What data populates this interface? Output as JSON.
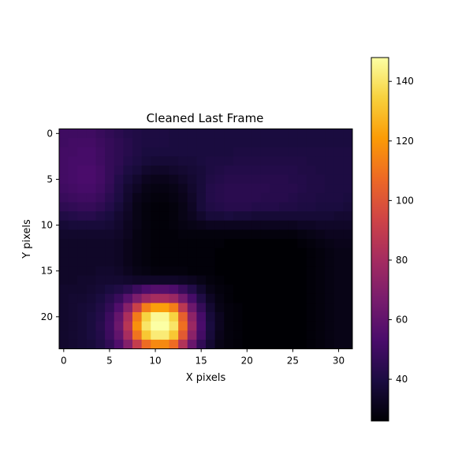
{
  "chart_data": {
    "type": "heatmap",
    "title": "Cleaned Last Frame",
    "xlabel": "X pixels",
    "ylabel": "Y pixels",
    "grid": false,
    "xlim": [
      -0.5,
      31.5
    ],
    "ylim": [
      23.5,
      -0.5
    ],
    "x_ticks": [
      0,
      5,
      10,
      15,
      20,
      25,
      30
    ],
    "y_ticks": [
      0,
      5,
      10,
      15,
      20
    ],
    "colormap": "inferno",
    "colorbar": {
      "placement": "right",
      "range": [
        26,
        148
      ],
      "ticks": [
        40,
        60,
        80,
        100,
        120,
        140
      ]
    },
    "grid_size": {
      "cols": 32,
      "rows": 24
    },
    "colormap_stops": [
      "#000004",
      "#1b0c41",
      "#4a0c6b",
      "#781c6d",
      "#a52c60",
      "#cf4446",
      "#ed6925",
      "#fb9b06",
      "#f7d13d",
      "#fcffa4"
    ],
    "z": [
      [
        50,
        50,
        50,
        50,
        48,
        46,
        44,
        42,
        41,
        40,
        40,
        40,
        39,
        39,
        39,
        39,
        39,
        39,
        39,
        39,
        39,
        39,
        39,
        39,
        39,
        39,
        39,
        39,
        39,
        39,
        39,
        39
      ],
      [
        50,
        51,
        51,
        51,
        49,
        47,
        45,
        43,
        41,
        40,
        40,
        40,
        39,
        39,
        39,
        39,
        39,
        39,
        39,
        39,
        39,
        39,
        39,
        39,
        39,
        39,
        39,
        39,
        39,
        39,
        39,
        39
      ],
      [
        51,
        51,
        52,
        52,
        50,
        47,
        45,
        43,
        41,
        39,
        39,
        39,
        39,
        39,
        39,
        39,
        39,
        39,
        39,
        40,
        40,
        40,
        40,
        40,
        40,
        40,
        40,
        40,
        40,
        40,
        40,
        40
      ],
      [
        51,
        52,
        52,
        52,
        50,
        47,
        45,
        42,
        40,
        38,
        37,
        37,
        37,
        38,
        38,
        39,
        40,
        40,
        40,
        41,
        41,
        41,
        41,
        41,
        41,
        41,
        41,
        40,
        40,
        40,
        40,
        40
      ],
      [
        51,
        52,
        53,
        53,
        51,
        47,
        44,
        40,
        38,
        35,
        34,
        34,
        35,
        36,
        37,
        38,
        40,
        41,
        42,
        42,
        42,
        42,
        42,
        42,
        42,
        42,
        41,
        41,
        40,
        40,
        40,
        40
      ],
      [
        51,
        52,
        53,
        53,
        51,
        47,
        42,
        38,
        35,
        32,
        31,
        31,
        32,
        34,
        36,
        38,
        41,
        42,
        43,
        43,
        43,
        43,
        43,
        43,
        43,
        42,
        42,
        41,
        41,
        40,
        40,
        40
      ],
      [
        50,
        51,
        52,
        52,
        50,
        46,
        41,
        36,
        33,
        30,
        29,
        29,
        30,
        32,
        35,
        38,
        42,
        43,
        44,
        44,
        44,
        44,
        44,
        43,
        43,
        43,
        42,
        41,
        41,
        40,
        40,
        40
      ],
      [
        48,
        49,
        50,
        50,
        48,
        44,
        40,
        35,
        31,
        29,
        28,
        28,
        29,
        31,
        34,
        38,
        42,
        43,
        44,
        44,
        44,
        44,
        43,
        43,
        43,
        42,
        41,
        41,
        40,
        40,
        40,
        39
      ],
      [
        45,
        46,
        47,
        47,
        45,
        42,
        38,
        34,
        30,
        28,
        27,
        27,
        28,
        30,
        33,
        38,
        41,
        42,
        43,
        43,
        43,
        42,
        42,
        42,
        41,
        41,
        40,
        40,
        39,
        39,
        39,
        38
      ],
      [
        41,
        42,
        43,
        43,
        41,
        39,
        36,
        33,
        30,
        28,
        27,
        27,
        28,
        30,
        32,
        35,
        38,
        38,
        39,
        38,
        38,
        37,
        37,
        37,
        37,
        37,
        37,
        37,
        37,
        37,
        36,
        36
      ],
      [
        37,
        38,
        38,
        38,
        38,
        37,
        35,
        32,
        30,
        28,
        27,
        27,
        28,
        29,
        30,
        31,
        32,
        32,
        32,
        32,
        32,
        32,
        32,
        32,
        32,
        32,
        33,
        33,
        34,
        34,
        34,
        34
      ],
      [
        35,
        35,
        35,
        35,
        35,
        35,
        34,
        32,
        29,
        28,
        27,
        27,
        27,
        28,
        28,
        28,
        28,
        28,
        28,
        28,
        28,
        28,
        28,
        28,
        28,
        28,
        29,
        30,
        31,
        32,
        32,
        32
      ],
      [
        34,
        34,
        34,
        34,
        34,
        34,
        33,
        31,
        29,
        28,
        27,
        27,
        27,
        27,
        27,
        27,
        27,
        27,
        26,
        26,
        26,
        26,
        26,
        26,
        26,
        26,
        27,
        28,
        29,
        30,
        31,
        31
      ],
      [
        34,
        34,
        34,
        34,
        34,
        34,
        33,
        31,
        29,
        28,
        27,
        27,
        27,
        27,
        27,
        27,
        27,
        26,
        26,
        26,
        26,
        26,
        26,
        26,
        26,
        26,
        26,
        27,
        28,
        29,
        30,
        30
      ],
      [
        34,
        34,
        34,
        34,
        34,
        34,
        33,
        31,
        29,
        28,
        27,
        27,
        27,
        27,
        27,
        27,
        27,
        26,
        26,
        26,
        26,
        26,
        26,
        26,
        26,
        26,
        26,
        27,
        28,
        29,
        30,
        30
      ],
      [
        34,
        34,
        34,
        34,
        35,
        35,
        34,
        32,
        30,
        29,
        28,
        28,
        28,
        28,
        27,
        27,
        27,
        26,
        26,
        26,
        26,
        26,
        26,
        26,
        26,
        26,
        26,
        27,
        28,
        29,
        30,
        30
      ],
      [
        34,
        34,
        35,
        35,
        36,
        36,
        36,
        35,
        34,
        34,
        34,
        34,
        34,
        33,
        32,
        30,
        28,
        27,
        26,
        26,
        26,
        26,
        26,
        26,
        26,
        26,
        26,
        27,
        28,
        29,
        30,
        30
      ],
      [
        35,
        35,
        35,
        36,
        37,
        39,
        41,
        44,
        49,
        54,
        56,
        56,
        54,
        48,
        42,
        35,
        30,
        28,
        27,
        26,
        26,
        26,
        26,
        26,
        26,
        26,
        26,
        27,
        28,
        29,
        30,
        30
      ],
      [
        35,
        36,
        36,
        37,
        39,
        43,
        48,
        57,
        68,
        77,
        81,
        81,
        77,
        65,
        52,
        41,
        33,
        29,
        27,
        26,
        26,
        26,
        26,
        26,
        26,
        26,
        26,
        27,
        28,
        29,
        30,
        30
      ],
      [
        35,
        36,
        37,
        38,
        41,
        46,
        55,
        71,
        92,
        113,
        122,
        122,
        113,
        87,
        63,
        47,
        36,
        30,
        28,
        27,
        26,
        26,
        26,
        26,
        26,
        26,
        26,
        27,
        28,
        29,
        30,
        30
      ],
      [
        35,
        36,
        37,
        39,
        42,
        49,
        61,
        82,
        112,
        135,
        146,
        146,
        135,
        104,
        73,
        52,
        38,
        32,
        28,
        27,
        26,
        26,
        26,
        26,
        26,
        26,
        26,
        27,
        28,
        29,
        30,
        30
      ],
      [
        35,
        36,
        37,
        39,
        43,
        50,
        63,
        86,
        118,
        140,
        148,
        148,
        140,
        109,
        77,
        53,
        39,
        32,
        28,
        27,
        26,
        26,
        26,
        26,
        26,
        26,
        26,
        27,
        28,
        29,
        30,
        30
      ],
      [
        35,
        36,
        37,
        39,
        42,
        49,
        60,
        81,
        110,
        132,
        142,
        142,
        132,
        102,
        72,
        51,
        38,
        31,
        28,
        27,
        26,
        26,
        26,
        26,
        26,
        26,
        26,
        27,
        28,
        29,
        30,
        30
      ],
      [
        35,
        36,
        37,
        38,
        41,
        46,
        55,
        70,
        90,
        108,
        116,
        116,
        108,
        84,
        62,
        46,
        36,
        30,
        28,
        27,
        26,
        26,
        26,
        26,
        26,
        26,
        26,
        27,
        28,
        29,
        30,
        30
      ]
    ]
  }
}
